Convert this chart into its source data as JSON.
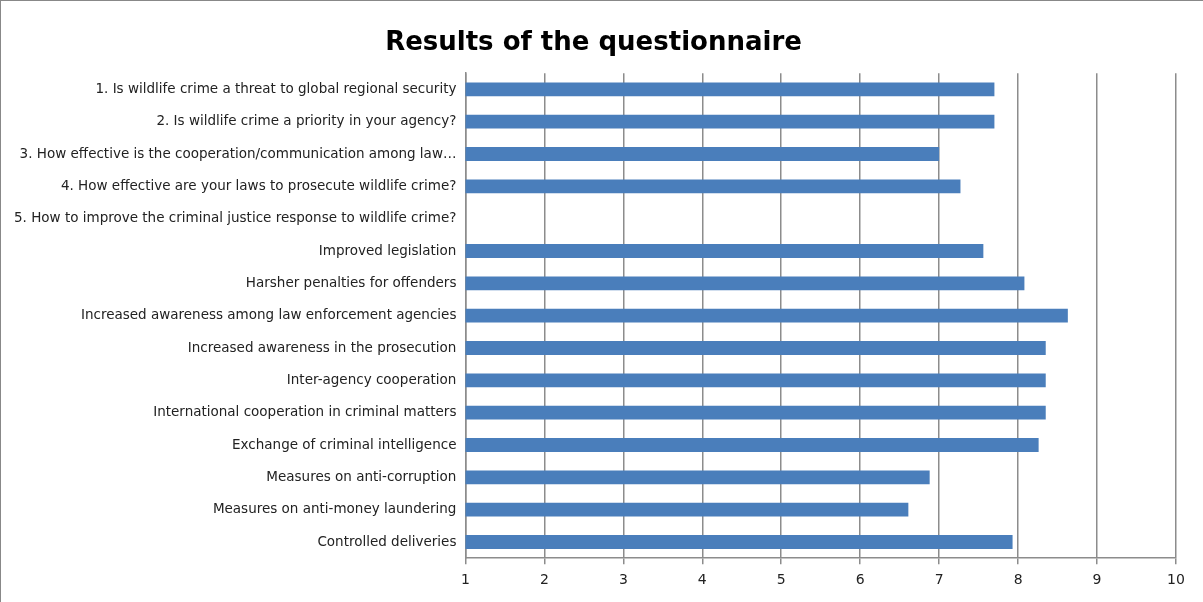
{
  "chart_data": {
    "type": "bar",
    "orientation": "horizontal",
    "title": "Results of the questionnaire",
    "categories": [
      "1. Is wildlife crime a threat to global regional security",
      "2. Is wildlife crime a priority in your agency?",
      "3. How effective is the cooperation/communication among law…",
      "4. How effective are your laws to prosecute wildlife crime?",
      "5. How to improve the criminal justice response to wildlife crime?",
      "Improved legislation",
      "Harsher penalties for offenders",
      "Increased awareness among law enforcement agencies",
      "Increased awareness in the prosecution",
      "Inter-agency cooperation",
      "International cooperation in criminal matters",
      "Exchange of criminal intelligence",
      "Measures on anti-corruption",
      "Measures on anti-money laundering",
      "Controlled deliveries"
    ],
    "values": [
      7.7,
      7.7,
      7.0,
      7.27,
      null,
      7.56,
      8.08,
      8.63,
      8.35,
      8.35,
      8.35,
      8.26,
      6.88,
      6.61,
      7.93
    ],
    "color": "#4a7ebb",
    "xlim": [
      1,
      10
    ],
    "xticks": [
      1,
      2,
      3,
      4,
      5,
      6,
      7,
      8,
      9,
      10
    ],
    "grid": "x"
  }
}
